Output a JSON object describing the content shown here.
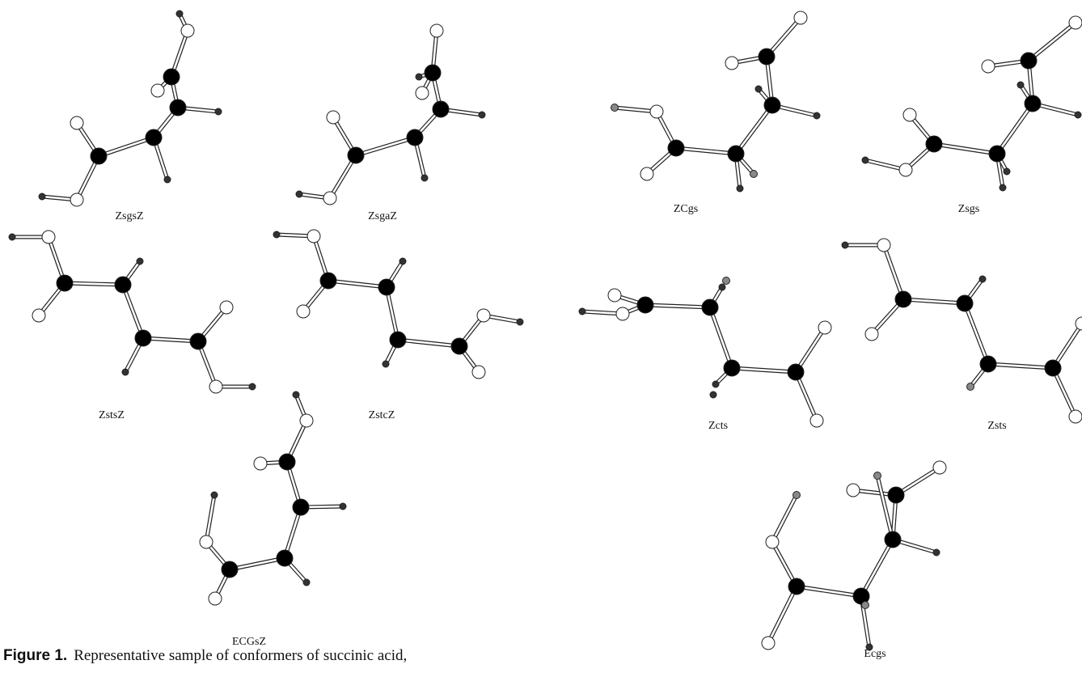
{
  "figure": {
    "labels": [
      "ZsgsZ",
      "ZsgaZ",
      "ZstsZ",
      "ZstcZ",
      "ECGsZ",
      "ZCgs",
      "Zsgs",
      "Zcts",
      "Zsts",
      "Ecgs"
    ],
    "caption": {
      "label": "Figure 1.",
      "text": "Representative sample of conformers of succinic acid,"
    }
  }
}
